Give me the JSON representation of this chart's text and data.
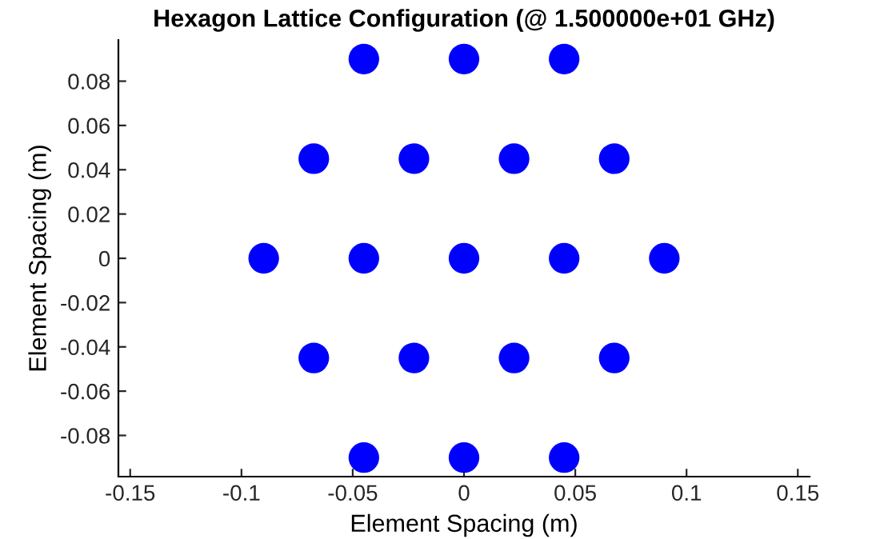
{
  "chart_data": {
    "type": "scatter",
    "title": "Hexagon Lattice Configuration (@ 1.500000e+01 GHz)",
    "xlabel": "Element Spacing (m)",
    "ylabel": "Element Spacing (m)",
    "x": [
      -0.045,
      0,
      0.045,
      -0.0675,
      -0.0225,
      0.0225,
      0.0675,
      -0.09,
      -0.045,
      0,
      0.045,
      0.09,
      -0.0675,
      -0.0225,
      0.0225,
      0.0675,
      -0.045,
      0,
      0.045
    ],
    "series": [
      {
        "color": "#0000ff",
        "values": [
          0.09,
          0.09,
          0.09,
          0.045,
          0.045,
          0.045,
          0.045,
          0,
          0,
          0,
          0,
          0,
          -0.045,
          -0.045,
          -0.045,
          -0.045,
          -0.09,
          -0.09,
          -0.09
        ]
      }
    ],
    "xlim": [
      -0.1553,
      0.1553
    ],
    "ylim": [
      -0.0986,
      0.0986
    ],
    "xticks": [
      -0.15,
      -0.1,
      -0.05,
      0,
      0.05,
      0.1,
      0.15
    ],
    "yticks": [
      -0.08,
      -0.06,
      -0.04,
      -0.02,
      0,
      0.02,
      0.04,
      0.06,
      0.08
    ],
    "marker": "circle",
    "grid": false,
    "legend": false
  }
}
